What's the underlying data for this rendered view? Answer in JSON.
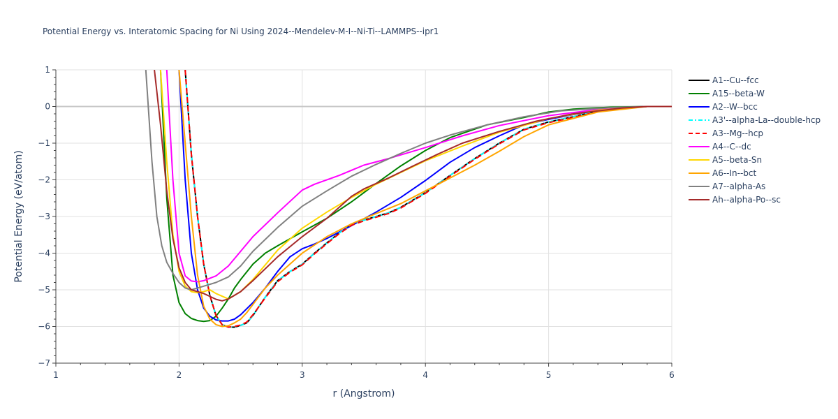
{
  "chart_data": {
    "type": "line",
    "title": "Potential Energy vs. Interatomic Spacing for Ni Using 2024--Mendelev-M-I--Ni-Ti--LAMMPS--ipr1",
    "xlabel": "r (Angstrom)",
    "ylabel": "Potential Energy (eV/atom)",
    "xlim": [
      1,
      6
    ],
    "ylim": [
      -7,
      1
    ],
    "xticks": [
      "1",
      "2",
      "3",
      "4",
      "5",
      "6"
    ],
    "yticks": [
      "1",
      "0",
      "−1",
      "−2",
      "−3",
      "−4",
      "−5",
      "−6",
      "−7"
    ],
    "grid": true,
    "legend_position": "top-right",
    "series": [
      {
        "name": "A1--Cu--fcc",
        "color": "#000000",
        "dash": "solid",
        "x": [
          2.05,
          2.1,
          2.15,
          2.2,
          2.25,
          2.3,
          2.35,
          2.4,
          2.45,
          2.5,
          2.55,
          2.6,
          2.7,
          2.8,
          2.9,
          3.0,
          3.1,
          3.2,
          3.3,
          3.4,
          3.5,
          3.6,
          3.7,
          3.8,
          4.0,
          4.2,
          4.4,
          4.6,
          4.8,
          5.0,
          5.2,
          5.4,
          5.6,
          5.8,
          6.0
        ],
        "y": [
          1.0,
          -1.3,
          -3.0,
          -4.3,
          -5.15,
          -5.7,
          -5.95,
          -6.02,
          -6.02,
          -5.97,
          -5.9,
          -5.7,
          -5.2,
          -4.75,
          -4.5,
          -4.3,
          -4.0,
          -3.72,
          -3.45,
          -3.22,
          -3.1,
          -3.0,
          -2.9,
          -2.75,
          -2.35,
          -1.88,
          -1.42,
          -1.0,
          -0.62,
          -0.42,
          -0.28,
          -0.12,
          -0.03,
          0.0,
          0.0
        ]
      },
      {
        "name": "A15--beta-W",
        "color": "#008000",
        "dash": "solid",
        "x": [
          1.85,
          1.9,
          1.95,
          2.0,
          2.05,
          2.1,
          2.15,
          2.2,
          2.25,
          2.3,
          2.35,
          2.4,
          2.45,
          2.5,
          2.6,
          2.7,
          2.8,
          3.0,
          3.2,
          3.4,
          3.6,
          3.8,
          4.0,
          4.2,
          4.5,
          4.8,
          5.0,
          5.2,
          5.5,
          5.8,
          6.0
        ],
        "y": [
          1.0,
          -2.5,
          -4.6,
          -5.35,
          -5.65,
          -5.78,
          -5.84,
          -5.86,
          -5.84,
          -5.72,
          -5.5,
          -5.25,
          -4.95,
          -4.72,
          -4.3,
          -4.0,
          -3.8,
          -3.42,
          -3.05,
          -2.6,
          -2.1,
          -1.62,
          -1.2,
          -0.85,
          -0.5,
          -0.3,
          -0.15,
          -0.07,
          -0.02,
          0.0,
          0.0
        ]
      },
      {
        "name": "A2--W--bcc",
        "color": "#0000ff",
        "dash": "solid",
        "x": [
          2.0,
          2.05,
          2.1,
          2.15,
          2.2,
          2.25,
          2.3,
          2.35,
          2.4,
          2.45,
          2.5,
          2.6,
          2.7,
          2.8,
          2.9,
          3.0,
          3.1,
          3.2,
          3.4,
          3.6,
          3.8,
          4.0,
          4.2,
          4.4,
          4.6,
          4.8,
          5.0,
          5.2,
          5.4,
          5.6,
          5.8,
          6.0
        ],
        "y": [
          1.0,
          -2.0,
          -4.0,
          -5.0,
          -5.5,
          -5.72,
          -5.82,
          -5.85,
          -5.85,
          -5.8,
          -5.68,
          -5.35,
          -4.95,
          -4.5,
          -4.1,
          -3.88,
          -3.75,
          -3.6,
          -3.25,
          -2.88,
          -2.48,
          -2.02,
          -1.52,
          -1.12,
          -0.8,
          -0.5,
          -0.35,
          -0.22,
          -0.1,
          -0.03,
          0.0,
          0.0
        ]
      },
      {
        "name": "A3'--alpha-La--double-hcp",
        "color": "#00ffff",
        "dash": "dashdot",
        "x": [
          2.05,
          2.1,
          2.15,
          2.2,
          2.25,
          2.3,
          2.35,
          2.4,
          2.45,
          2.5,
          2.55,
          2.6,
          2.7,
          2.8,
          2.9,
          3.0,
          3.1,
          3.2,
          3.3,
          3.4,
          3.5,
          3.6,
          3.7,
          3.8,
          4.0,
          4.2,
          4.4,
          4.6,
          4.8,
          5.0,
          5.2,
          5.4,
          5.6,
          5.8,
          6.0
        ],
        "y": [
          1.0,
          -1.3,
          -3.0,
          -4.3,
          -5.15,
          -5.7,
          -5.95,
          -6.02,
          -6.02,
          -5.97,
          -5.9,
          -5.7,
          -5.2,
          -4.75,
          -4.5,
          -4.3,
          -4.0,
          -3.72,
          -3.45,
          -3.22,
          -3.1,
          -3.0,
          -2.9,
          -2.75,
          -2.35,
          -1.88,
          -1.42,
          -1.0,
          -0.62,
          -0.42,
          -0.28,
          -0.12,
          -0.03,
          0.0,
          0.0
        ]
      },
      {
        "name": "A3--Mg--hcp",
        "color": "#ff0000",
        "dash": "dash",
        "x": [
          2.05,
          2.1,
          2.15,
          2.2,
          2.25,
          2.3,
          2.35,
          2.4,
          2.45,
          2.5,
          2.55,
          2.6,
          2.7,
          2.8,
          2.9,
          3.0,
          3.1,
          3.2,
          3.3,
          3.4,
          3.5,
          3.6,
          3.7,
          3.8,
          4.0,
          4.2,
          4.4,
          4.6,
          4.8,
          5.0,
          5.2,
          5.4,
          5.6,
          5.8,
          6.0
        ],
        "y": [
          1.0,
          -1.3,
          -3.0,
          -4.3,
          -5.15,
          -5.7,
          -5.95,
          -6.02,
          -6.0,
          -5.96,
          -5.88,
          -5.68,
          -5.22,
          -4.78,
          -4.52,
          -4.32,
          -4.02,
          -3.74,
          -3.47,
          -3.24,
          -3.12,
          -3.02,
          -2.92,
          -2.77,
          -2.37,
          -1.9,
          -1.44,
          -1.02,
          -0.64,
          -0.44,
          -0.3,
          -0.14,
          -0.04,
          0.0,
          0.0
        ]
      },
      {
        "name": "A4--C--dc",
        "color": "#ff00ff",
        "dash": "solid",
        "x": [
          1.9,
          1.95,
          2.0,
          2.05,
          2.1,
          2.15,
          2.2,
          2.3,
          2.4,
          2.5,
          2.6,
          2.8,
          3.0,
          3.1,
          3.3,
          3.5,
          3.7,
          4.0,
          4.3,
          4.6,
          5.0,
          5.4,
          5.8,
          6.0
        ],
        "y": [
          1.0,
          -2.0,
          -4.0,
          -4.62,
          -4.76,
          -4.78,
          -4.75,
          -4.62,
          -4.35,
          -3.95,
          -3.55,
          -2.9,
          -2.28,
          -2.12,
          -1.88,
          -1.6,
          -1.42,
          -1.12,
          -0.8,
          -0.52,
          -0.25,
          -0.08,
          0.0,
          0.0
        ]
      },
      {
        "name": "A5--beta-Sn",
        "color": "#ffd700",
        "dash": "solid",
        "x": [
          1.85,
          1.9,
          1.95,
          2.0,
          2.05,
          2.1,
          2.15,
          2.2,
          2.25,
          2.3,
          2.4,
          2.5,
          2.6,
          2.8,
          3.0,
          3.2,
          3.4,
          3.6,
          3.8,
          4.0,
          4.3,
          4.6,
          5.0,
          5.4,
          5.8,
          6.0
        ],
        "y": [
          1.0,
          -1.5,
          -3.5,
          -4.5,
          -4.9,
          -5.05,
          -5.08,
          -5.05,
          -5.0,
          -5.1,
          -5.25,
          -5.05,
          -4.72,
          -3.92,
          -3.32,
          -2.88,
          -2.48,
          -2.12,
          -1.8,
          -1.48,
          -1.08,
          -0.7,
          -0.33,
          -0.1,
          0.0,
          0.0
        ]
      },
      {
        "name": "A6--In--bct",
        "color": "#ffa500",
        "dash": "solid",
        "x": [
          2.0,
          2.05,
          2.1,
          2.15,
          2.2,
          2.25,
          2.3,
          2.35,
          2.4,
          2.45,
          2.5,
          2.55,
          2.6,
          2.7,
          2.8,
          3.0,
          3.2,
          3.4,
          3.6,
          3.8,
          4.0,
          4.2,
          4.4,
          4.6,
          4.8,
          5.0,
          5.4,
          5.8,
          6.0
        ],
        "y": [
          1.0,
          -1.0,
          -3.0,
          -4.6,
          -5.45,
          -5.8,
          -5.95,
          -6.0,
          -5.98,
          -5.9,
          -5.8,
          -5.62,
          -5.4,
          -4.95,
          -4.6,
          -4.0,
          -3.55,
          -3.2,
          -2.92,
          -2.65,
          -2.3,
          -1.95,
          -1.6,
          -1.22,
          -0.82,
          -0.5,
          -0.15,
          0.0,
          0.0
        ]
      },
      {
        "name": "A7--alpha-As",
        "color": "#808080",
        "dash": "solid",
        "x": [
          1.73,
          1.78,
          1.82,
          1.86,
          1.9,
          1.95,
          2.0,
          2.05,
          2.1,
          2.15,
          2.2,
          2.3,
          2.4,
          2.5,
          2.6,
          2.8,
          3.0,
          3.2,
          3.4,
          3.6,
          3.8,
          4.0,
          4.2,
          4.5,
          4.8,
          5.1,
          5.5,
          5.8,
          6.0
        ],
        "y": [
          1.0,
          -1.5,
          -3.0,
          -3.8,
          -4.25,
          -4.55,
          -4.8,
          -4.95,
          -5.0,
          -4.95,
          -4.9,
          -4.8,
          -4.65,
          -4.35,
          -3.95,
          -3.3,
          -2.72,
          -2.3,
          -1.9,
          -1.58,
          -1.28,
          -1.0,
          -0.78,
          -0.5,
          -0.28,
          -0.12,
          -0.03,
          0.0,
          0.0
        ]
      },
      {
        "name": "Ah--alpha-Po--sc",
        "color": "#a52a2a",
        "dash": "solid",
        "x": [
          1.8,
          1.85,
          1.9,
          1.95,
          2.0,
          2.05,
          2.1,
          2.15,
          2.2,
          2.25,
          2.3,
          2.35,
          2.4,
          2.5,
          2.6,
          2.8,
          3.0,
          3.2,
          3.3,
          3.4,
          3.5,
          3.7,
          3.9,
          4.1,
          4.3,
          4.6,
          4.9,
          5.2,
          5.6,
          5.8,
          6.0
        ],
        "y": [
          1.0,
          -0.5,
          -2.3,
          -3.6,
          -4.4,
          -4.8,
          -5.0,
          -5.05,
          -5.1,
          -5.18,
          -5.26,
          -5.3,
          -5.25,
          -5.05,
          -4.75,
          -4.1,
          -3.55,
          -3.05,
          -2.75,
          -2.45,
          -2.25,
          -1.95,
          -1.62,
          -1.3,
          -1.0,
          -0.68,
          -0.4,
          -0.2,
          -0.04,
          0.0,
          0.0
        ]
      }
    ]
  }
}
